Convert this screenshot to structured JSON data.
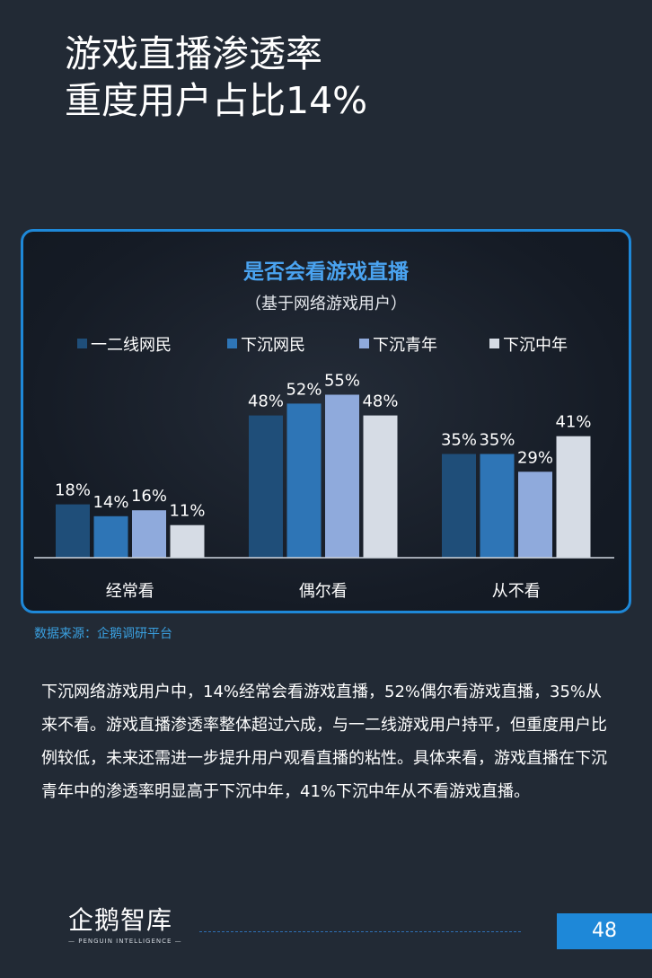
{
  "page": {
    "title_line1": "游戏直播渗透率",
    "title_line2": "重度用户占比14%",
    "source": "数据来源：企鹅调研平台",
    "body": "下沉网络游戏用户中，14%经常会看游戏直播，52%偶尔看游戏直播，35%从来不看。游戏直播渗透率整体超过六成，与一二线游戏用户持平，但重度用户比例较低，未来还需进一步提升用户观看直播的粘性。具体来看，游戏直播在下沉青年中的渗透率明显高于下沉中年，41%下沉中年从不看游戏直播。",
    "logo_text": "企鹅智库",
    "logo_sub": "— PENGUIN INTELLIGENCE —",
    "page_number": "48"
  },
  "chart_data": {
    "type": "bar",
    "title": "是否会看游戏直播",
    "subtitle": "（基于网络游戏用户）",
    "categories": [
      "经常看",
      "偶尔看",
      "从不看"
    ],
    "series": [
      {
        "name": "一二线网民",
        "values": [
          18,
          48,
          35
        ],
        "labels": [
          "18%",
          "48%",
          "35%"
        ],
        "color": "#1f4e79"
      },
      {
        "name": "下沉网民",
        "values": [
          14,
          52,
          35
        ],
        "labels": [
          "14%",
          "52%",
          "35%"
        ],
        "color": "#2e75b6"
      },
      {
        "name": "下沉青年",
        "values": [
          16,
          55,
          29
        ],
        "labels": [
          "16%",
          "55%",
          "29%"
        ],
        "color": "#8faadc"
      },
      {
        "name": "下沉中年",
        "values": [
          11,
          48,
          41
        ],
        "labels": [
          "11%",
          "48%",
          "41%"
        ],
        "color": "#d6dce5"
      }
    ],
    "ylim": [
      0,
      55
    ],
    "legend": "top",
    "grid": false
  }
}
